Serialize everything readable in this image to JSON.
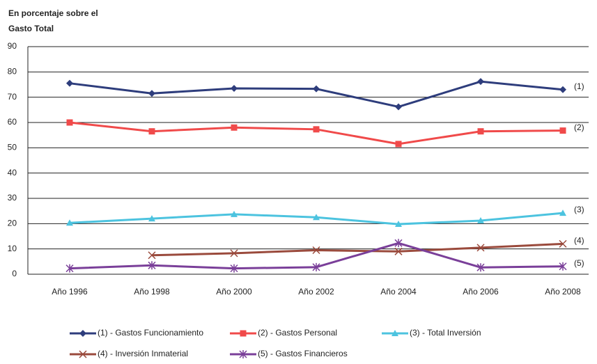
{
  "chart_data": {
    "type": "line",
    "ylabel": [
      "En porcentaje sobre el",
      "Gasto Total"
    ],
    "categories": [
      "Año 1996",
      "Año 1998",
      "Año 2000",
      "Año 2002",
      "Año 2004",
      "Año 2006",
      "Año 2008"
    ],
    "series": [
      {
        "name": "(1) - Gastos Funcionamiento",
        "color": "#2e3d7c",
        "marker": "diamond",
        "annotation": "(1)",
        "values": [
          75.5,
          71.5,
          73.5,
          73.3,
          66.2,
          76.2,
          73
        ]
      },
      {
        "name": "(2) - Gastos Personal",
        "color": "#f04a4a",
        "marker": "square",
        "annotation": "(2)",
        "values": [
          60,
          56.5,
          58,
          57.3,
          51.5,
          56.5,
          56.8
        ]
      },
      {
        "name": "(3) - Total Inversión",
        "color": "#4cc3df",
        "marker": "triangle",
        "annotation": "(3)",
        "values": [
          20.3,
          22,
          23.7,
          22.5,
          19.8,
          21.2,
          24.2
        ]
      },
      {
        "name": "(4) - Inversión Inmaterial",
        "color": "#9a4a3c",
        "marker": "x",
        "annotation": "(4)",
        "values": [
          null,
          7.5,
          8.3,
          9.5,
          9,
          10.5,
          12
        ]
      },
      {
        "name": "(5) - Gastos Financieros",
        "color": "#7a3f99",
        "marker": "star",
        "annotation": "(5)",
        "values": [
          2.3,
          3.5,
          2.3,
          2.8,
          12.3,
          2.7,
          3.1
        ]
      }
    ],
    "ylim": [
      0,
      90
    ],
    "yticks": [
      0,
      10,
      20,
      30,
      40,
      50,
      60,
      70,
      80,
      90
    ],
    "grid": true
  }
}
